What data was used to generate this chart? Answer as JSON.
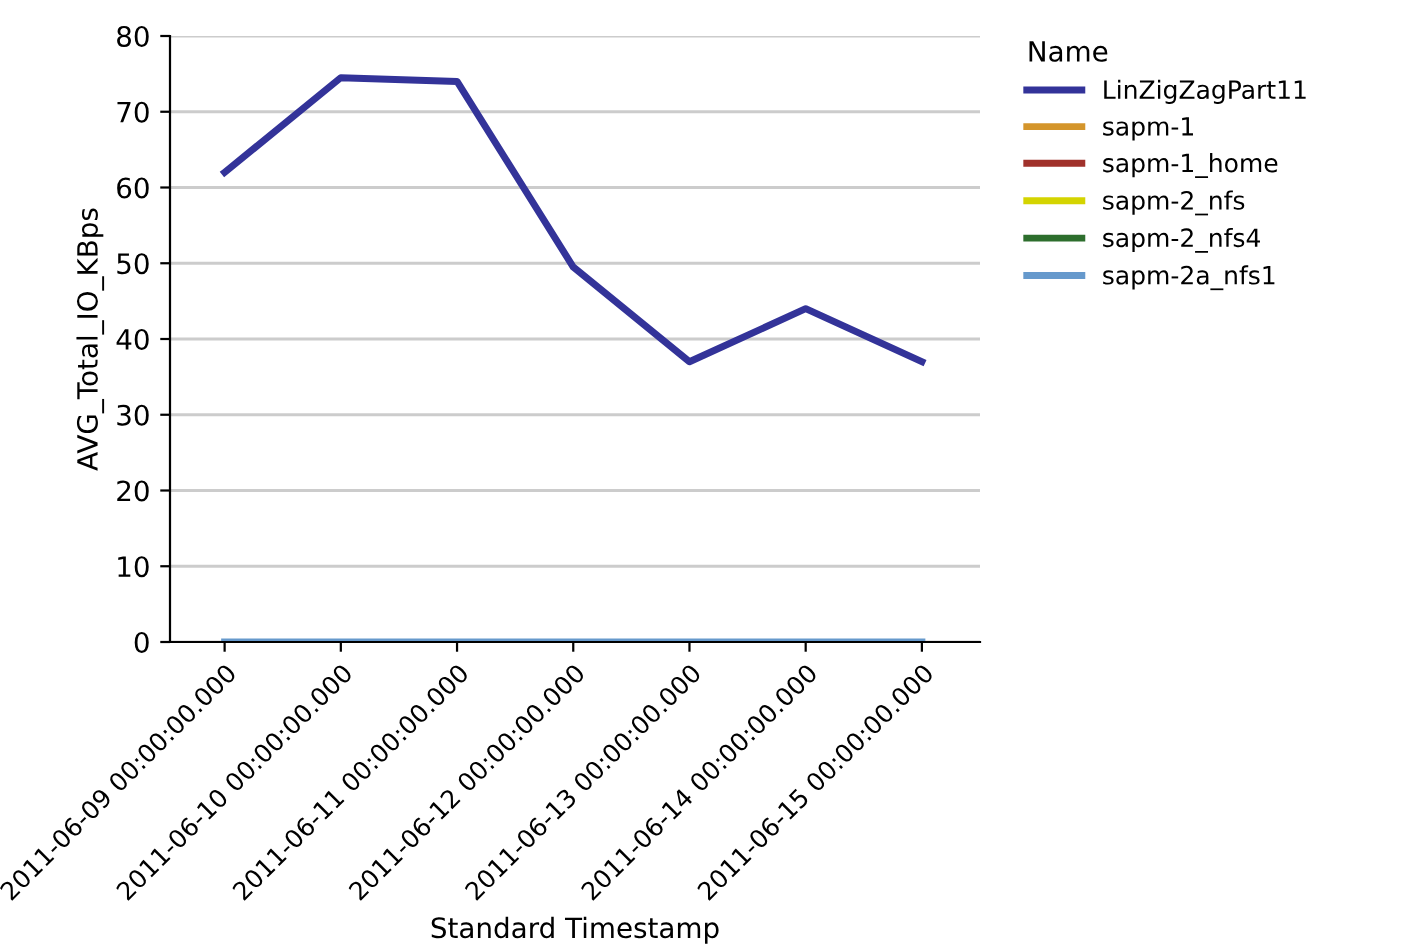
{
  "chart_data": {
    "type": "line",
    "xlabel": "Standard Timestamp",
    "ylabel": "AVG_Total_IO_KBps",
    "legend_title": "Name",
    "categories": [
      "2011-06-09 00:00:00.000",
      "2011-06-10 00:00:00.000",
      "2011-06-11 00:00:00.000",
      "2011-06-12 00:00:00.000",
      "2011-06-13 00:00:00.000",
      "2011-06-14 00:00:00.000",
      "2011-06-15 00:00:00.000"
    ],
    "series": [
      {
        "name": "LinZigZagPart11",
        "color": "#333399",
        "values": [
          62,
          74.5,
          74,
          49.5,
          37,
          44,
          37
        ]
      },
      {
        "name": "sapm-1",
        "color": "#d4952b",
        "values": [
          null,
          null,
          null,
          null,
          null,
          null,
          null
        ]
      },
      {
        "name": "sapm-1_home",
        "color": "#a0312b",
        "values": [
          null,
          null,
          null,
          null,
          null,
          null,
          null
        ]
      },
      {
        "name": "sapm-2_nfs",
        "color": "#d4d400",
        "values": [
          null,
          null,
          null,
          null,
          null,
          null,
          null
        ]
      },
      {
        "name": "sapm-2_nfs4",
        "color": "#2d6e2d",
        "values": [
          null,
          null,
          null,
          null,
          null,
          null,
          null
        ]
      },
      {
        "name": "sapm-2a_nfs1",
        "color": "#6699cc",
        "values": [
          0,
          0,
          0,
          0,
          0,
          0,
          0
        ]
      }
    ],
    "ylim": [
      0,
      80
    ],
    "yticks": [
      0,
      10,
      20,
      30,
      40,
      50,
      60,
      70,
      80
    ],
    "grid": "y",
    "legend": "right",
    "line_style": "solid",
    "marker": "none"
  }
}
